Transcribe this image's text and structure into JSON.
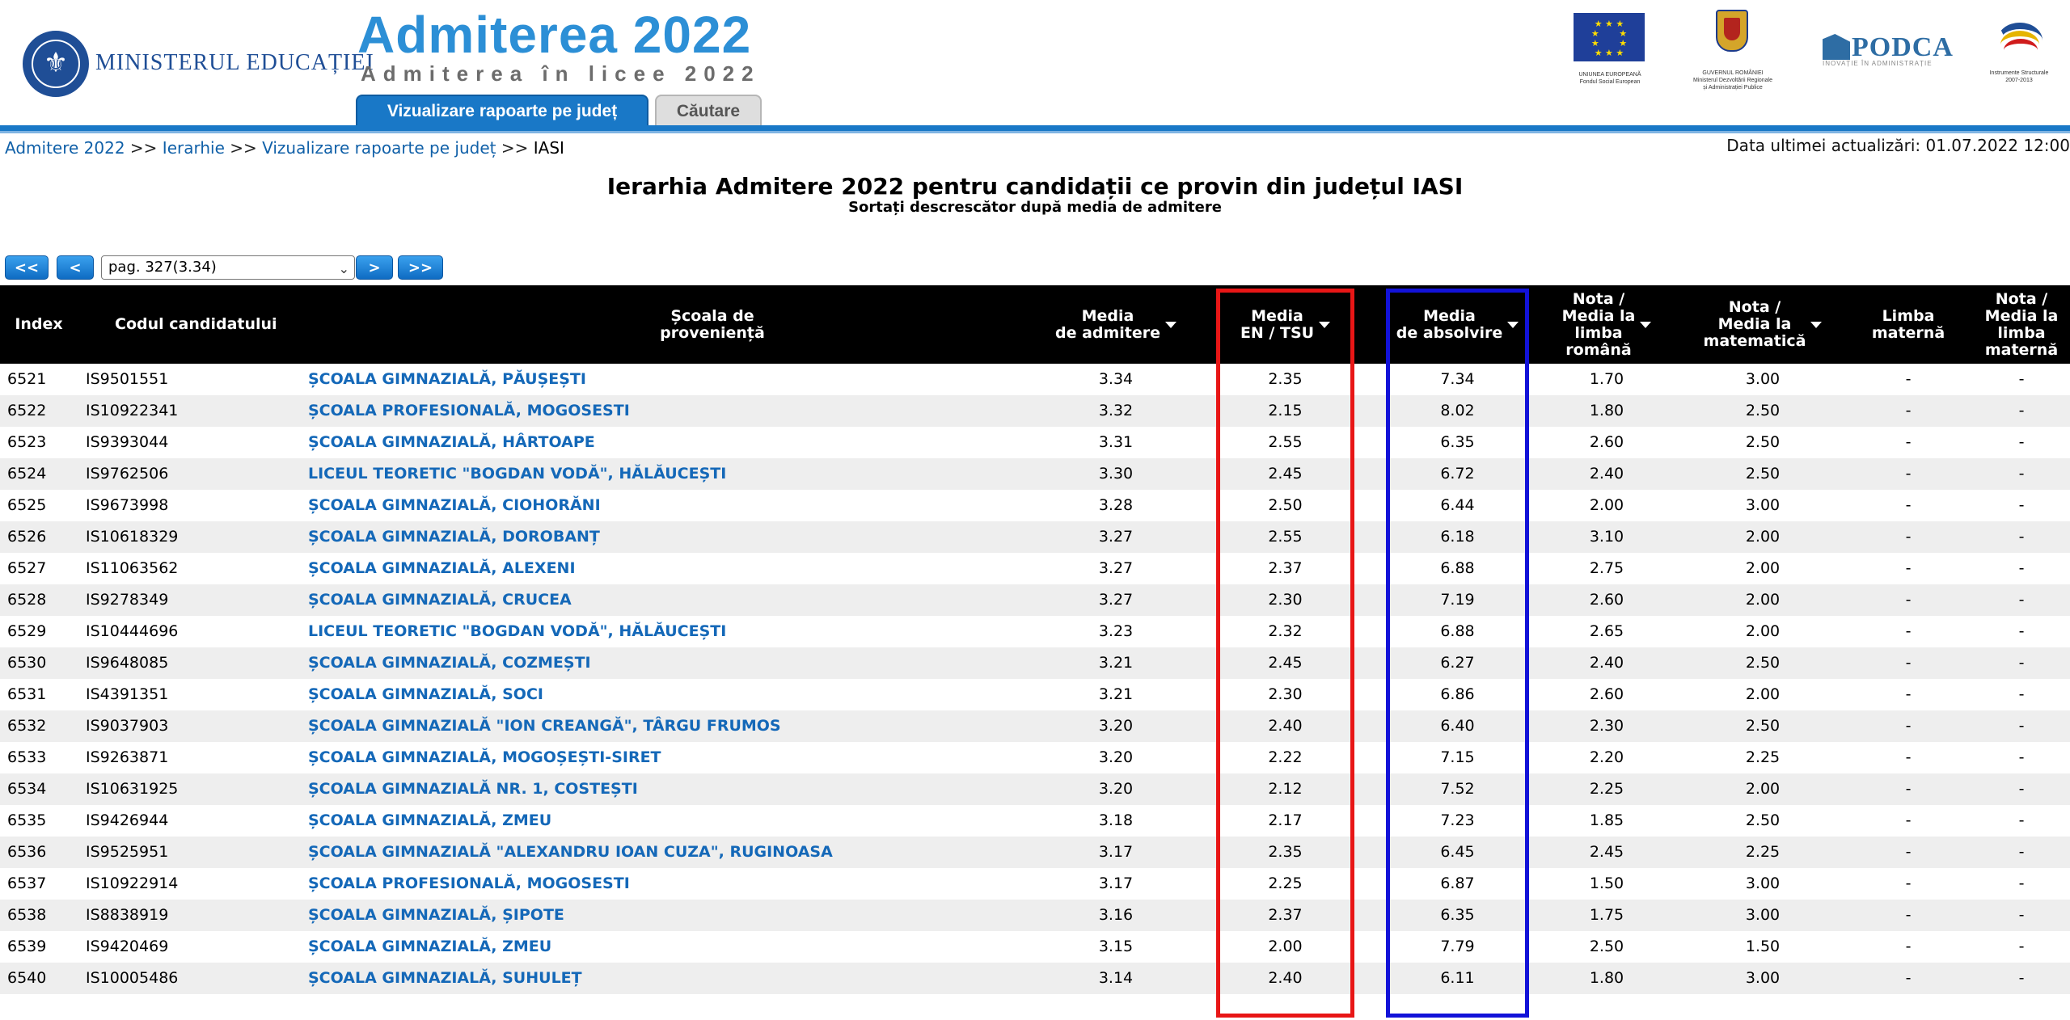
{
  "header": {
    "ministry_name": "MINISTERUL EDUCAȚIEI",
    "brand_title": "Admiterea 2022",
    "brand_subtitle": "Admiterea în licee 2022",
    "tabs": [
      {
        "label": "Vizualizare rapoarte pe județ",
        "active": true
      },
      {
        "label": "Căutare",
        "active": false
      }
    ],
    "partners": {
      "eu_caption": "UNIUNEA EUROPEANĂ\nFondul Social European",
      "gov_caption": "GUVERNUL ROMÂNIEI\nMinisterul Dezvoltării Regionale\nși Administrației Publice",
      "podca_word": "PODCA",
      "podca_tag": "INOVAȚIE ÎN ADMINISTRAȚIE",
      "struct_caption": "Instrumente Structurale\n2007-2013"
    },
    "accent_color": "#1978c7"
  },
  "breadcrumb": {
    "items": [
      "Admitere 2022",
      "Ierarhie",
      "Vizualizare rapoarte pe județ"
    ],
    "separator": ">>",
    "current": "IASI"
  },
  "last_update": "Data ultimei actualizări: 01.07.2022 12:00",
  "title": "Ierarhia Admitere 2022 pentru candidații ce provin din județul IASI",
  "subtitle": "Sortați descrescător după media de admitere",
  "pagination": {
    "first": "<<",
    "prev": "<",
    "selected_page": "pag. 327(3.34)",
    "next": ">",
    "last": ">>"
  },
  "table": {
    "columns": [
      {
        "key": "index",
        "label": "Index"
      },
      {
        "key": "code",
        "label": "Codul candidatului"
      },
      {
        "key": "school",
        "label": "Școala de\nproveniență"
      },
      {
        "key": "adm",
        "label": "Media\nde admitere",
        "sortable": true
      },
      {
        "key": "en",
        "label": "Media\nEN / TSU",
        "sortable": true
      },
      {
        "key": "abs",
        "label": "Media\nde absolvire",
        "sortable": true
      },
      {
        "key": "ro",
        "label": "Nota /\nMedia la\nlimba\nromână",
        "sortable": true
      },
      {
        "key": "mat",
        "label": "Nota /\nMedia la\nmatematică",
        "sortable": true
      },
      {
        "key": "lm",
        "label": "Limba\nmaternă"
      },
      {
        "key": "nlm",
        "label": "Nota /\nMedia la\nlimba\nmaternă"
      }
    ],
    "rows": [
      {
        "index": "6521",
        "code": "IS9501551",
        "school": "ȘCOALA GIMNAZIALĂ, PĂUȘEȘTI",
        "adm": "3.34",
        "en": "2.35",
        "abs": "7.34",
        "ro": "1.70",
        "mat": "3.00",
        "lm": "-",
        "nlm": "-"
      },
      {
        "index": "6522",
        "code": "IS10922341",
        "school": "ȘCOALA PROFESIONALĂ, MOGOSESTI",
        "adm": "3.32",
        "en": "2.15",
        "abs": "8.02",
        "ro": "1.80",
        "mat": "2.50",
        "lm": "-",
        "nlm": "-"
      },
      {
        "index": "6523",
        "code": "IS9393044",
        "school": "ȘCOALA GIMNAZIALĂ, HÂRTOAPE",
        "adm": "3.31",
        "en": "2.55",
        "abs": "6.35",
        "ro": "2.60",
        "mat": "2.50",
        "lm": "-",
        "nlm": "-"
      },
      {
        "index": "6524",
        "code": "IS9762506",
        "school": "LICEUL TEORETIC \"BOGDAN VODĂ\", HĂLĂUCEȘTI",
        "adm": "3.30",
        "en": "2.45",
        "abs": "6.72",
        "ro": "2.40",
        "mat": "2.50",
        "lm": "-",
        "nlm": "-"
      },
      {
        "index": "6525",
        "code": "IS9673998",
        "school": "ȘCOALA GIMNAZIALĂ, CIOHORĂNI",
        "adm": "3.28",
        "en": "2.50",
        "abs": "6.44",
        "ro": "2.00",
        "mat": "3.00",
        "lm": "-",
        "nlm": "-"
      },
      {
        "index": "6526",
        "code": "IS10618329",
        "school": "ȘCOALA GIMNAZIALĂ, DOROBANȚ",
        "adm": "3.27",
        "en": "2.55",
        "abs": "6.18",
        "ro": "3.10",
        "mat": "2.00",
        "lm": "-",
        "nlm": "-"
      },
      {
        "index": "6527",
        "code": "IS11063562",
        "school": "ȘCOALA GIMNAZIALĂ, ALEXENI",
        "adm": "3.27",
        "en": "2.37",
        "abs": "6.88",
        "ro": "2.75",
        "mat": "2.00",
        "lm": "-",
        "nlm": "-"
      },
      {
        "index": "6528",
        "code": "IS9278349",
        "school": "ȘCOALA GIMNAZIALĂ, CRUCEA",
        "adm": "3.27",
        "en": "2.30",
        "abs": "7.19",
        "ro": "2.60",
        "mat": "2.00",
        "lm": "-",
        "nlm": "-"
      },
      {
        "index": "6529",
        "code": "IS10444696",
        "school": "LICEUL TEORETIC \"BOGDAN VODĂ\", HĂLĂUCEȘTI",
        "adm": "3.23",
        "en": "2.32",
        "abs": "6.88",
        "ro": "2.65",
        "mat": "2.00",
        "lm": "-",
        "nlm": "-"
      },
      {
        "index": "6530",
        "code": "IS9648085",
        "school": "ȘCOALA GIMNAZIALĂ, COZMEȘTI",
        "adm": "3.21",
        "en": "2.45",
        "abs": "6.27",
        "ro": "2.40",
        "mat": "2.50",
        "lm": "-",
        "nlm": "-"
      },
      {
        "index": "6531",
        "code": "IS4391351",
        "school": "ȘCOALA GIMNAZIALĂ, SOCI",
        "adm": "3.21",
        "en": "2.30",
        "abs": "6.86",
        "ro": "2.60",
        "mat": "2.00",
        "lm": "-",
        "nlm": "-"
      },
      {
        "index": "6532",
        "code": "IS9037903",
        "school": "ȘCOALA GIMNAZIALĂ \"ION CREANGĂ\", TÂRGU FRUMOS",
        "adm": "3.20",
        "en": "2.40",
        "abs": "6.40",
        "ro": "2.30",
        "mat": "2.50",
        "lm": "-",
        "nlm": "-"
      },
      {
        "index": "6533",
        "code": "IS9263871",
        "school": "ȘCOALA GIMNAZIALĂ, MOGOȘEȘTI-SIRET",
        "adm": "3.20",
        "en": "2.22",
        "abs": "7.15",
        "ro": "2.20",
        "mat": "2.25",
        "lm": "-",
        "nlm": "-"
      },
      {
        "index": "6534",
        "code": "IS10631925",
        "school": "ȘCOALA GIMNAZIALĂ NR. 1, COSTEȘTI",
        "adm": "3.20",
        "en": "2.12",
        "abs": "7.52",
        "ro": "2.25",
        "mat": "2.00",
        "lm": "-",
        "nlm": "-"
      },
      {
        "index": "6535",
        "code": "IS9426944",
        "school": "ȘCOALA GIMNAZIALĂ, ZMEU",
        "adm": "3.18",
        "en": "2.17",
        "abs": "7.23",
        "ro": "1.85",
        "mat": "2.50",
        "lm": "-",
        "nlm": "-"
      },
      {
        "index": "6536",
        "code": "IS9525951",
        "school": "ȘCOALA GIMNAZIALĂ \"ALEXANDRU IOAN CUZA\", RUGINOASA",
        "adm": "3.17",
        "en": "2.35",
        "abs": "6.45",
        "ro": "2.45",
        "mat": "2.25",
        "lm": "-",
        "nlm": "-"
      },
      {
        "index": "6537",
        "code": "IS10922914",
        "school": "ȘCOALA PROFESIONALĂ, MOGOSESTI",
        "adm": "3.17",
        "en": "2.25",
        "abs": "6.87",
        "ro": "1.50",
        "mat": "3.00",
        "lm": "-",
        "nlm": "-"
      },
      {
        "index": "6538",
        "code": "IS8838919",
        "school": "ȘCOALA GIMNAZIALĂ, ȘIPOTE",
        "adm": "3.16",
        "en": "2.37",
        "abs": "6.35",
        "ro": "1.75",
        "mat": "3.00",
        "lm": "-",
        "nlm": "-"
      },
      {
        "index": "6539",
        "code": "IS9420469",
        "school": "ȘCOALA GIMNAZIALĂ, ZMEU",
        "adm": "3.15",
        "en": "2.00",
        "abs": "7.79",
        "ro": "2.50",
        "mat": "1.50",
        "lm": "-",
        "nlm": "-"
      },
      {
        "index": "6540",
        "code": "IS10005486",
        "school": "ȘCOALA GIMNAZIALĂ, SUHULEȚ",
        "adm": "3.14",
        "en": "2.40",
        "abs": "6.11",
        "ro": "1.80",
        "mat": "3.00",
        "lm": "-",
        "nlm": "-"
      }
    ]
  },
  "highlights": {
    "en_box_color": "#e81616",
    "abs_box_color": "#1212d8"
  }
}
